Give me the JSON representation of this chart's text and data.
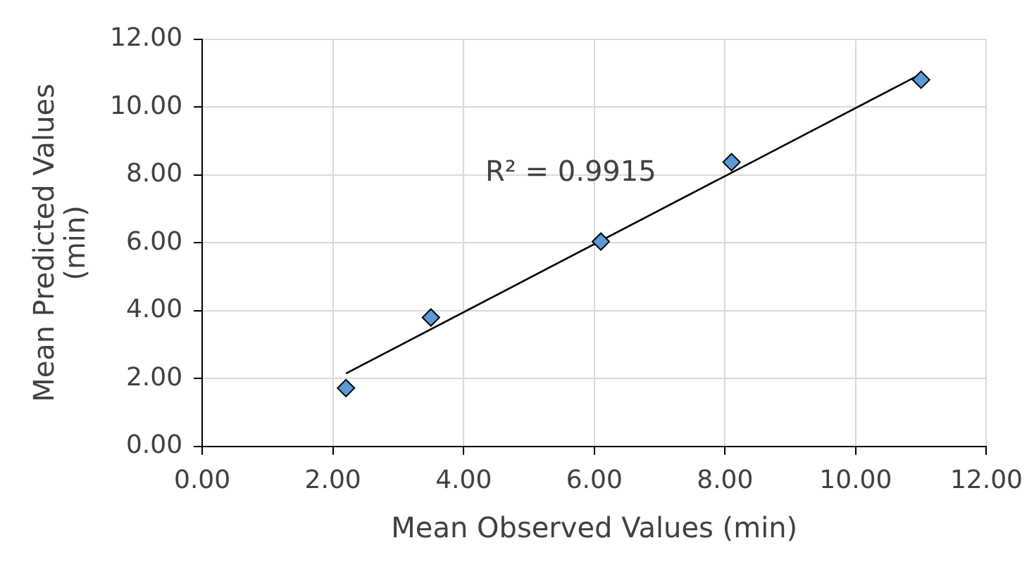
{
  "chart_data": {
    "type": "scatter",
    "xlabel": "Mean Observed Values (min)",
    "ylabel": "Mean Predicted Values (min)",
    "series": [
      {
        "color": "#5b9bd5",
        "marker": "diamond",
        "x": [
          2.2,
          3.5,
          6.1,
          8.1,
          11.0
        ],
        "values": [
          1.72,
          3.8,
          6.04,
          8.38,
          10.81
        ]
      },
      {
        "type": "line",
        "color": "#000000",
        "marker": "none",
        "x": [
          2.2,
          11.0
        ],
        "values": [
          2.15,
          10.98
        ]
      }
    ],
    "xlim": [
      0,
      12
    ],
    "xticks": [
      {
        "value": 0,
        "label": "0.00"
      },
      {
        "value": 2,
        "label": "2.00"
      },
      {
        "value": 4,
        "label": "4.00"
      },
      {
        "value": 6,
        "label": "6.00"
      },
      {
        "value": 8,
        "label": "8.00"
      },
      {
        "value": 10,
        "label": "10.00"
      },
      {
        "value": 12,
        "label": "12.00"
      }
    ],
    "ylim": [
      0,
      12
    ],
    "yticks": [
      {
        "value": 0,
        "label": "0.00"
      },
      {
        "value": 2,
        "label": "2.00"
      },
      {
        "value": 4,
        "label": "4.00"
      },
      {
        "value": 6,
        "label": "6.00"
      },
      {
        "value": 8,
        "label": "8.00"
      },
      {
        "value": 10,
        "label": "10.00"
      },
      {
        "value": 12,
        "label": "12.00"
      }
    ],
    "grid": true,
    "legend": false,
    "annotations": [
      "R² = 0.9915"
    ]
  }
}
